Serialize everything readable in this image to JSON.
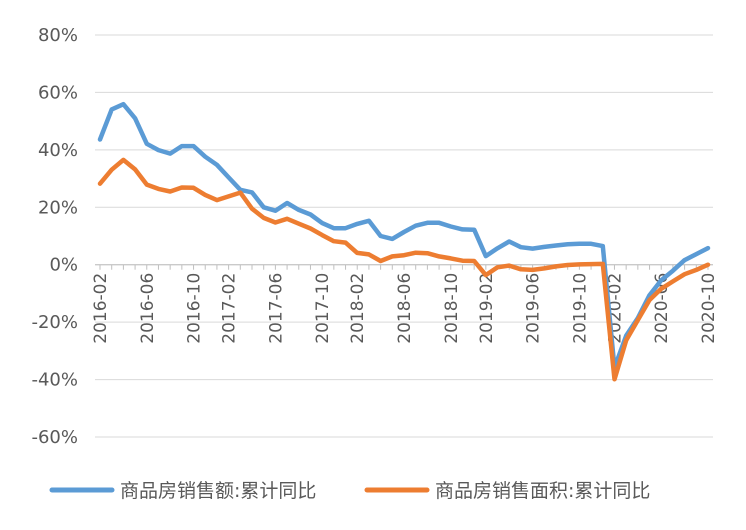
{
  "chart_data": {
    "type": "line",
    "title": "",
    "xlabel": "",
    "ylabel": "",
    "ylim": [
      -60,
      80
    ],
    "y_ticks": [
      -60,
      -40,
      -20,
      0,
      20,
      40,
      60,
      80
    ],
    "y_tick_labels": [
      "-60%",
      "-40%",
      "-20%",
      "0%",
      "20%",
      "40%",
      "60%",
      "80%"
    ],
    "x": [
      "2016-02",
      "2016-03",
      "2016-04",
      "2016-05",
      "2016-06",
      "2016-07",
      "2016-08",
      "2016-09",
      "2016-10",
      "2016-11",
      "2016-12",
      "2017-02",
      "2017-03",
      "2017-04",
      "2017-05",
      "2017-06",
      "2017-07",
      "2017-08",
      "2017-09",
      "2017-10",
      "2017-11",
      "2017-12",
      "2018-02",
      "2018-03",
      "2018-04",
      "2018-05",
      "2018-06",
      "2018-07",
      "2018-08",
      "2018-09",
      "2018-10",
      "2018-11",
      "2018-12",
      "2019-02",
      "2019-03",
      "2019-04",
      "2019-05",
      "2019-06",
      "2019-07",
      "2019-08",
      "2019-09",
      "2019-10",
      "2019-11",
      "2019-12",
      "2020-02",
      "2020-03",
      "2020-04",
      "2020-05",
      "2020-06",
      "2020-07",
      "2020-08",
      "2020-09",
      "2020-10"
    ],
    "x_tick_labels": [
      "2016-02",
      "2016-06",
      "2016-10",
      "2017-02",
      "2017-06",
      "2017-10",
      "2018-02",
      "2018-06",
      "2018-10",
      "2019-02",
      "2019-06",
      "2019-10",
      "2020-02",
      "2020-06",
      "2020-10"
    ],
    "x_tick_indices": [
      0,
      4,
      8,
      11,
      15,
      19,
      22,
      26,
      30,
      33,
      37,
      41,
      44,
      48,
      52
    ],
    "grid": true,
    "legend_position": "bottom",
    "series": [
      {
        "name": "商品房销售额:累计同比",
        "color": "#5b9bd5",
        "values": [
          43.6,
          54.1,
          55.9,
          51.0,
          42.1,
          39.9,
          38.7,
          41.3,
          41.3,
          37.6,
          34.8,
          30.4,
          26.1,
          25.2,
          20.0,
          18.8,
          21.5,
          19.1,
          17.5,
          14.5,
          12.7,
          12.7,
          14.2,
          15.3,
          10.0,
          9.0,
          11.4,
          13.6,
          14.6,
          14.6,
          13.3,
          12.3,
          12.2,
          3.0,
          5.7,
          8.1,
          6.1,
          5.6,
          6.2,
          6.7,
          7.1,
          7.3,
          7.3,
          6.5,
          -35.9,
          -24.7,
          -18.6,
          -10.6,
          -5.4,
          -2.1,
          1.6,
          3.7,
          5.8
        ]
      },
      {
        "name": "商品房销售面积:累计同比",
        "color": "#ed7d31",
        "values": [
          28.2,
          33.1,
          36.5,
          33.2,
          27.9,
          26.4,
          25.5,
          26.9,
          26.8,
          24.3,
          22.5,
          23.8,
          25.1,
          19.5,
          16.3,
          14.7,
          16.0,
          14.3,
          12.6,
          10.3,
          8.2,
          7.7,
          4.1,
          3.6,
          1.3,
          2.9,
          3.3,
          4.2,
          4.0,
          2.9,
          2.2,
          1.4,
          1.3,
          -3.6,
          -0.9,
          -0.3,
          -1.6,
          -1.8,
          -1.3,
          -0.6,
          -0.1,
          0.1,
          0.2,
          0.3,
          -39.9,
          -26.3,
          -19.3,
          -12.3,
          -8.4,
          -5.8,
          -3.3,
          -1.8,
          0.0
        ]
      }
    ]
  }
}
